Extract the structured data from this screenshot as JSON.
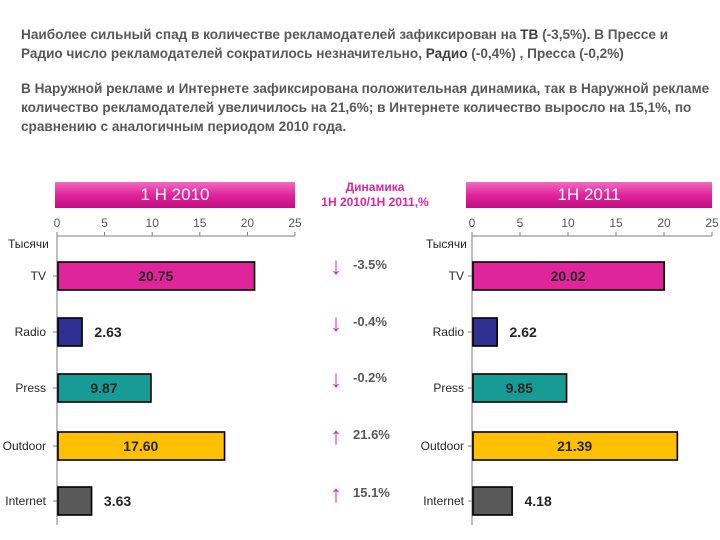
{
  "intro": {
    "p1": {
      "t1": "Наиболее сильный спад в количестве рекламодателей зафиксирован  на ",
      "b1": "ТВ",
      "t2": " (-3,5%). В Прессе и Радио число рекламодателей сократилось незначительно, ",
      "b2": "Радио",
      "t3": " (-0,4%) , Пресса (-0,2%)"
    },
    "p2": "В Наружной рекламе и Интернете зафиксирована положительная динамика, так в Наружной рекламе количество рекламодателей увеличилось  на 21,6%; в Интернете количество выросло на 15,1%, по сравнению с аналогичным периодом 2010 года."
  },
  "dynamics": {
    "title_line1": "Динамика",
    "title_line2": "1Н 2010/1Н 2011,%",
    "items": [
      {
        "label": "-3.5%",
        "direction": "down",
        "arrow": "↓"
      },
      {
        "label": "-0.4%",
        "direction": "down",
        "arrow": "↓"
      },
      {
        "label": "-0.2%",
        "direction": "down",
        "arrow": "↓"
      },
      {
        "label": "21.6%",
        "direction": "up",
        "arrow": "↑"
      },
      {
        "label": "15.1%",
        "direction": "up",
        "arrow": "↑"
      }
    ]
  },
  "colors": {
    "accent": "#e0249c",
    "TV": "#e0249c",
    "Radio": "#2e3192",
    "Press": "#179c95",
    "Outdoor": "#ffc000",
    "Internet": "#595959"
  },
  "chart_data": [
    {
      "type": "bar",
      "orientation": "horizontal",
      "title": "1 H 2010",
      "ylabel": "Тысячи",
      "xlim": [
        0,
        25
      ],
      "ticks": [
        0,
        5,
        10,
        15,
        20,
        25
      ],
      "categories": [
        "TV",
        "Radio",
        "Press",
        "Outdoor",
        "Internet"
      ],
      "values": [
        20.75,
        2.63,
        9.87,
        17.6,
        3.63
      ],
      "value_labels": [
        "20.75",
        "2.63",
        "9.87",
        "17.60",
        "3.63"
      ]
    },
    {
      "type": "bar",
      "orientation": "horizontal",
      "title": "1H 2011",
      "ylabel": "Тысячи",
      "xlim": [
        0,
        25
      ],
      "ticks": [
        0,
        5,
        10,
        15,
        20,
        25
      ],
      "categories": [
        "TV",
        "Radio",
        "Press",
        "Outdoor",
        "Internet"
      ],
      "values": [
        20.02,
        2.62,
        9.85,
        21.39,
        4.18
      ],
      "value_labels": [
        "20.02",
        "2.62",
        "9.85",
        "21.39",
        "4.18"
      ]
    }
  ]
}
